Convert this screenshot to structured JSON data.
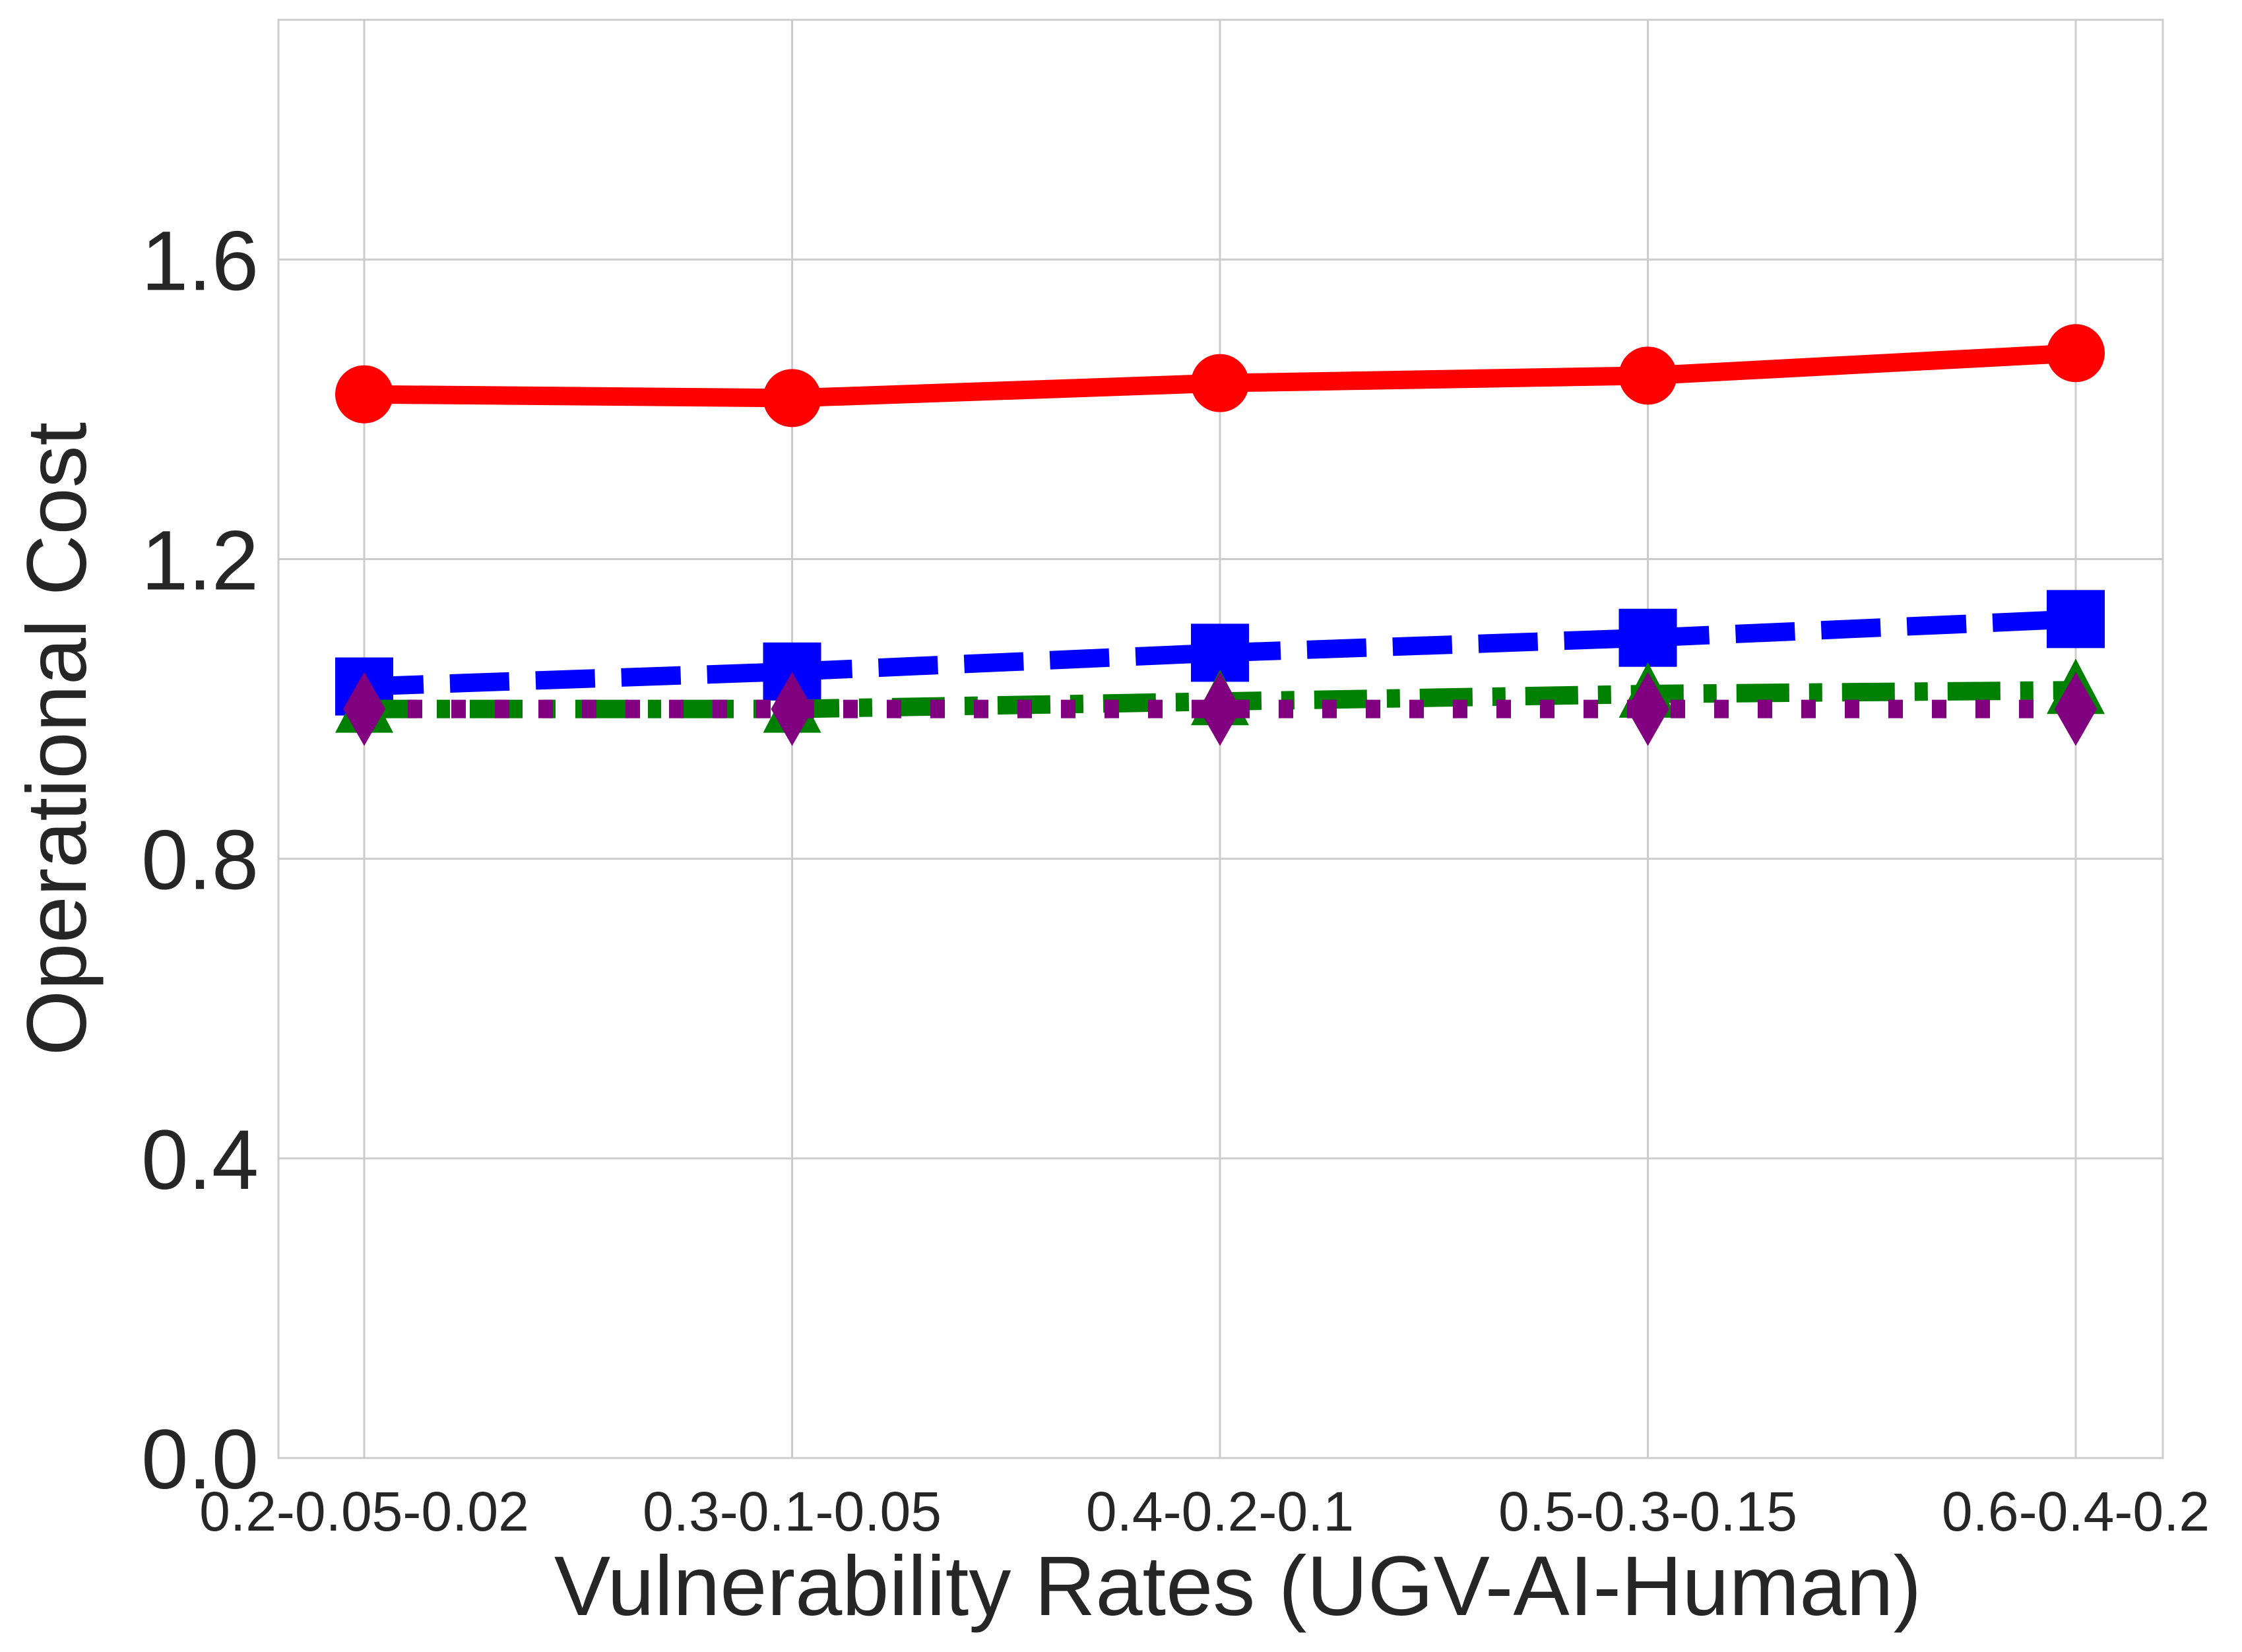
{
  "chart_data": {
    "type": "line",
    "title": "",
    "xlabel": "Vulnerability Rates (UGV-AI-Human)",
    "ylabel": "Operational Cost",
    "categories": [
      "0.2-0.05-0.02",
      "0.3-0.1-0.05",
      "0.4-0.2-0.1",
      "0.5-0.3-0.15",
      "0.6-0.4-0.2"
    ],
    "ylim": [
      0.0,
      1.92
    ],
    "yticks": [
      "0.0",
      "0.4",
      "0.8",
      "1.2",
      "1.6"
    ],
    "grid": true,
    "legend": "none",
    "series": [
      {
        "values": [
          1.42,
          1.415,
          1.435,
          1.445,
          1.475
        ],
        "color": "#ff0000",
        "line_style": "solid",
        "marker": "circle"
      },
      {
        "values": [
          1.03,
          1.05,
          1.075,
          1.095,
          1.12
        ],
        "color": "#0000ff",
        "line_style": "dashed",
        "marker": "square"
      },
      {
        "values": [
          1.0,
          1.0,
          1.01,
          1.02,
          1.025
        ],
        "color": "#008000",
        "line_style": "dash-dot",
        "marker": "triangle"
      },
      {
        "values": [
          1.0,
          1.0,
          1.0,
          1.0,
          1.0
        ],
        "color": "#800080",
        "line_style": "dotted",
        "marker": "diamond"
      }
    ]
  }
}
